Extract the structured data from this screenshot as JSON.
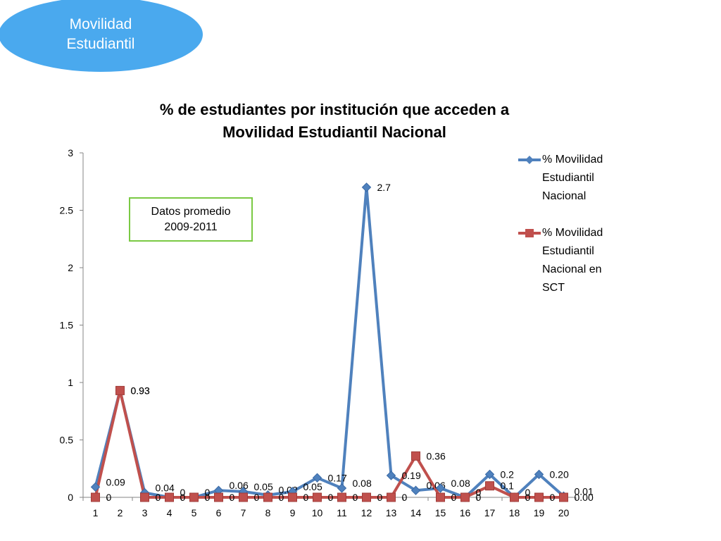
{
  "badge": {
    "line1": "Movilidad",
    "line2": "Estudiantil",
    "color": "#4aa9ee"
  },
  "note": {
    "line1": "Datos promedio",
    "line2": "2009-2011",
    "border_color": "#7ac943"
  },
  "chart_data": {
    "type": "line",
    "title": "% de estudiantes  por institución que acceden a Movilidad Estudiantil Nacional",
    "title_line1": "% de estudiantes  por institución que acceden a",
    "title_line2": "Movilidad Estudiantil Nacional",
    "xlabel": "",
    "ylabel": "",
    "x": [
      1,
      2,
      3,
      4,
      5,
      6,
      7,
      8,
      9,
      10,
      11,
      12,
      13,
      14,
      15,
      16,
      17,
      18,
      19,
      20
    ],
    "ylim": [
      0,
      3
    ],
    "yticks": [
      "0",
      "0.5",
      "1",
      "1.5",
      "2",
      "2.5",
      "3"
    ],
    "grid": false,
    "legend_position": "right",
    "series": [
      {
        "name": "% Movilidad Estudiantil Nacional",
        "name_lines": [
          "% Movilidad",
          "Estudiantil",
          "Nacional"
        ],
        "color": "#4f81bd",
        "marker": "diamond",
        "values": [
          0.09,
          0.93,
          0.04,
          0,
          0,
          0.06,
          0.05,
          0.02,
          0.05,
          0.17,
          0.08,
          2.7,
          0.19,
          0.06,
          0.08,
          0,
          0.2,
          0,
          0.2,
          0.01
        ],
        "labels": [
          "0.09",
          "0.93",
          "0.04",
          "0",
          "0",
          "0.06",
          "0.05",
          "0.02",
          "0.05",
          "0.17",
          "0.08",
          "2.7",
          "0.19",
          "0.06",
          "0.08",
          "0",
          "0.2",
          "0",
          "0.20",
          "0.01"
        ]
      },
      {
        "name": "% Movilidad Estudiantil Nacional en SCT",
        "name_lines": [
          "% Movilidad",
          "Estudiantil",
          "Nacional en",
          "SCT"
        ],
        "color": "#c0504d",
        "marker": "square",
        "values": [
          0,
          0.93,
          0,
          0,
          0,
          0,
          0,
          0,
          0,
          0,
          0,
          0,
          0,
          0.36,
          0,
          0,
          0.1,
          0,
          0,
          0
        ],
        "labels": [
          "0",
          "0.93",
          "0",
          "0",
          "0",
          "0",
          "0",
          "0",
          "0",
          "0",
          "0",
          "0",
          "0",
          "0.36",
          "0",
          "0",
          "0.1",
          "0",
          "0",
          "0.00"
        ]
      }
    ]
  }
}
